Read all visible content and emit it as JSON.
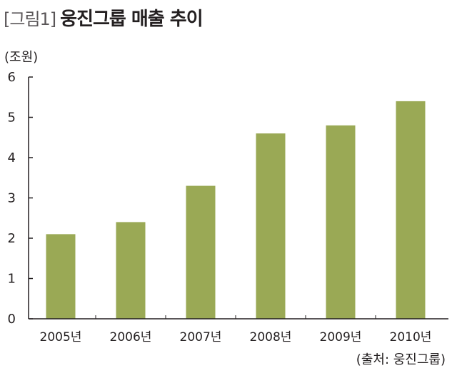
{
  "header": {
    "figure_label": "[그림1]",
    "title": "웅진그룹 매출 추이"
  },
  "unit": "(조원)",
  "source": "(출처: 웅진그룹)",
  "colors": {
    "bar": "#9aa955",
    "axis": "#231f20"
  },
  "chart_data": {
    "type": "bar",
    "title": "웅진그룹 매출 추이",
    "xlabel": "",
    "ylabel": "(조원)",
    "categories": [
      "2005년",
      "2006년",
      "2007년",
      "2008년",
      "2009년",
      "2010년"
    ],
    "values": [
      2.1,
      2.4,
      3.3,
      4.6,
      4.8,
      5.4
    ],
    "ylim": [
      0,
      6
    ],
    "yticks": [
      0,
      1,
      2,
      3,
      4,
      5,
      6
    ],
    "grid": false,
    "legend": "none"
  }
}
